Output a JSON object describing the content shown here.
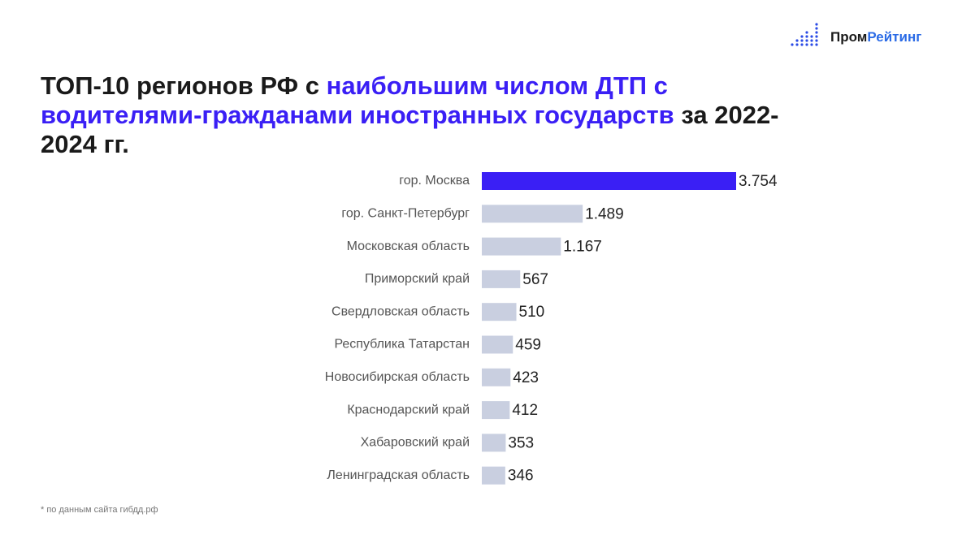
{
  "brand": {
    "prefix": "Пром",
    "accent": "Рейтинг"
  },
  "chart_data": {
    "type": "hbar",
    "title": {
      "lead": "ТОП-10 регионов РФ с ",
      "highlight": "наибольшим числом ДТП с водителями-гражданами иностранных государств",
      "tail": " за 2022-2024 гг."
    },
    "categories": [
      "гор. Москва",
      "гор. Санкт-Петербург",
      "Московская область",
      "Приморский край",
      "Свердловская область",
      "Республика Татарстан",
      "Новосибирская область",
      "Краснодарский край",
      "Хабаровский край",
      "Ленинградская область"
    ],
    "values": [
      3754,
      1489,
      1167,
      567,
      510,
      459,
      423,
      412,
      353,
      346
    ],
    "value_labels": [
      "3.754",
      "1.489",
      "1.167",
      "567",
      "510",
      "459",
      "423",
      "412",
      "353",
      "346"
    ],
    "colors": [
      "#3a1ff5",
      "#c9cfe0",
      "#c9cfe0",
      "#c9cfe0",
      "#c9cfe0",
      "#c9cfe0",
      "#c9cfe0",
      "#c9cfe0",
      "#c9cfe0",
      "#c9cfe0"
    ],
    "note": "* по данным сайта гибдд.рф"
  }
}
